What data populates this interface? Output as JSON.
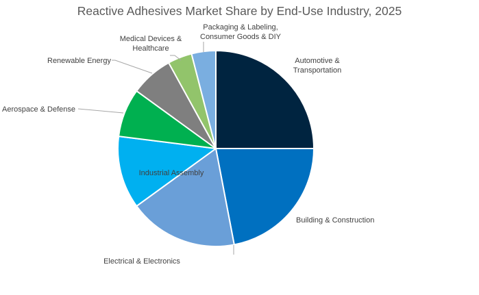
{
  "chart_data": {
    "type": "pie",
    "title": "Reactive Adhesives Market Share by End-Use Industry, 2025",
    "unit": "percent",
    "start_angle": "12 o'clock, clockwise",
    "legend": "none (category labels on/around slices)",
    "categories": [
      "Automotive & Transportation",
      "Building & Construction",
      "Electrical & Electronics",
      "Industrial Assembly",
      "Aerospace & Defense",
      "Renewable Energy",
      "Medical Devices & Healthcare",
      "Packaging & Labeling, Consumer Goods & DIY"
    ],
    "values": [
      25,
      22,
      18,
      12,
      8,
      7,
      4,
      4
    ],
    "colors": [
      "#002440",
      "#0070C0",
      "#6A9FD8",
      "#00B0F0",
      "#00B050",
      "#7F7F7F",
      "#92C46B",
      "#7AAEE0"
    ],
    "labels": [
      {
        "lines": [
          "Automotive &",
          "Transportation"
        ]
      },
      {
        "lines": [
          "Building & Construction"
        ]
      },
      {
        "lines": [
          "Electrical & Electronics"
        ]
      },
      {
        "lines": [
          "Industrial Assembly"
        ]
      },
      {
        "lines": [
          "Aerospace & Defense"
        ]
      },
      {
        "lines": [
          "Renewable Energy"
        ]
      },
      {
        "lines": [
          "Medical Devices &",
          "Healthcare"
        ]
      },
      {
        "lines": [
          "Packaging & Labeling,",
          "Consumer Goods & DIY"
        ]
      }
    ]
  }
}
